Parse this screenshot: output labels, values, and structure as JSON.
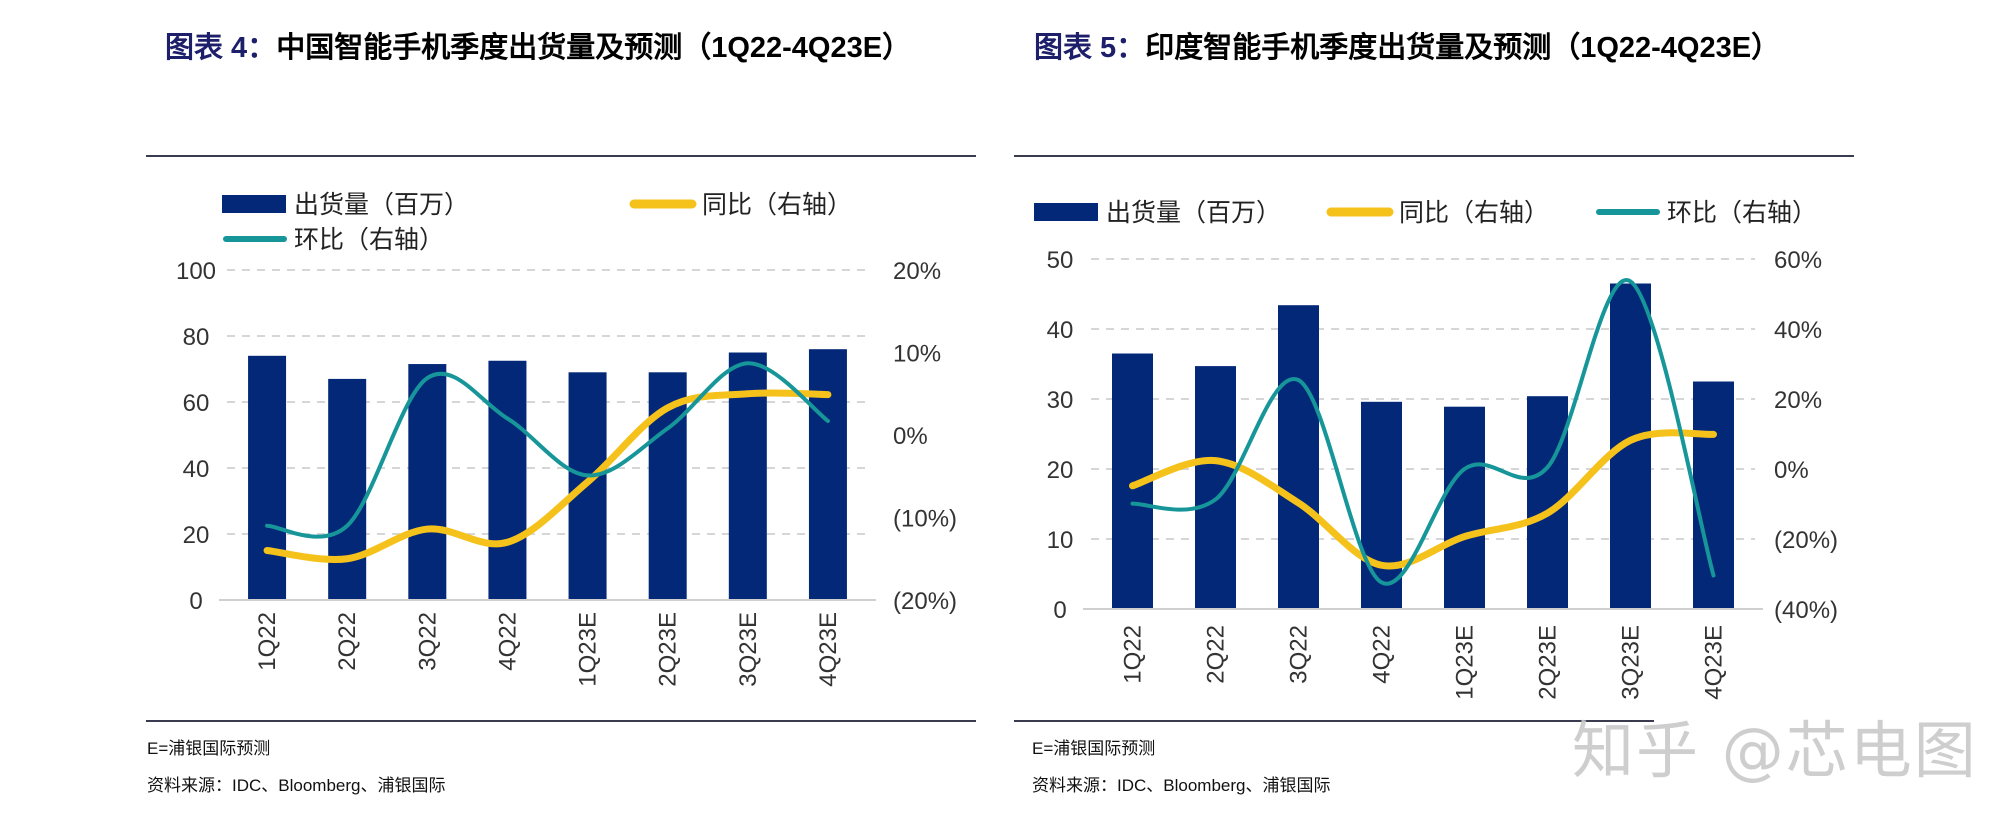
{
  "colors": {
    "bar": "#032878",
    "yoy": "#f5c21b",
    "qoq": "#17969a",
    "title_lead": "#1d1f6b"
  },
  "panels": [
    {
      "title_lead": "图表 4：",
      "title_rest": "中国智能手机季度出货量及预测（1Q22-4Q23E）",
      "note": "E=浦银国际预测",
      "source": "资料来源：IDC、Bloomberg、浦银国际"
    },
    {
      "title_lead": "图表 5：",
      "title_rest": "印度智能手机季度出货量及预测（1Q22-4Q23E）",
      "note": "E=浦银国际预测",
      "source": "资料来源：IDC、Bloomberg、浦银国际"
    }
  ],
  "watermark": "知乎 @芯电图",
  "chart_data": [
    {
      "type": "bar+line",
      "categories": [
        "1Q22",
        "2Q22",
        "3Q22",
        "4Q22",
        "1Q23E",
        "2Q23E",
        "3Q23E",
        "4Q23E"
      ],
      "series": [
        {
          "name": "出货量（百万）",
          "type": "bar",
          "axis": "left",
          "values": [
            74,
            67,
            71.5,
            72.5,
            69,
            69,
            75,
            76
          ]
        },
        {
          "name": "同比（右轴）",
          "type": "line",
          "axis": "right",
          "values": [
            -14,
            -15,
            -11.4,
            -13,
            -5.7,
            3.3,
            5,
            4.9
          ]
        },
        {
          "name": "环比（右轴）",
          "type": "line",
          "axis": "right",
          "values": [
            -11,
            -11,
            6.9,
            2,
            -4.9,
            0.8,
            8.7,
            1.7
          ]
        }
      ],
      "left_ticks": [
        "0",
        "20",
        "40",
        "60",
        "80",
        "100"
      ],
      "right_ticks": [
        "(20%)",
        "(10%)",
        "0%",
        "10%",
        "20%"
      ],
      "ylim": [
        0,
        100
      ],
      "y2lim": [
        -20,
        20
      ],
      "grid": true,
      "legend": "top"
    },
    {
      "type": "bar+line",
      "categories": [
        "1Q22",
        "2Q22",
        "3Q22",
        "4Q22",
        "1Q23E",
        "2Q23E",
        "3Q23E",
        "4Q23E"
      ],
      "series": [
        {
          "name": "出货量（百万）",
          "type": "bar",
          "axis": "left",
          "values": [
            36.5,
            34.7,
            43.4,
            29.6,
            28.9,
            30.4,
            46.5,
            32.5
          ]
        },
        {
          "name": "同比（右轴）",
          "type": "line",
          "axis": "right",
          "values": [
            -4.8,
            2.4,
            -9.7,
            -27.5,
            -19.3,
            -12.6,
            8.2,
            9.9
          ]
        },
        {
          "name": "环比（右轴）",
          "type": "line",
          "axis": "right",
          "values": [
            -9.9,
            -8.7,
            25.4,
            -32.4,
            0,
            0.5,
            53.6,
            -30.4
          ]
        }
      ],
      "left_ticks": [
        "0",
        "10",
        "20",
        "30",
        "40",
        "50"
      ],
      "right_ticks": [
        "(40%)",
        "(20%)",
        "0%",
        "20%",
        "40%",
        "60%"
      ],
      "ylim": [
        0,
        50
      ],
      "y2lim": [
        -40,
        60
      ],
      "grid": true,
      "legend": "top"
    }
  ]
}
